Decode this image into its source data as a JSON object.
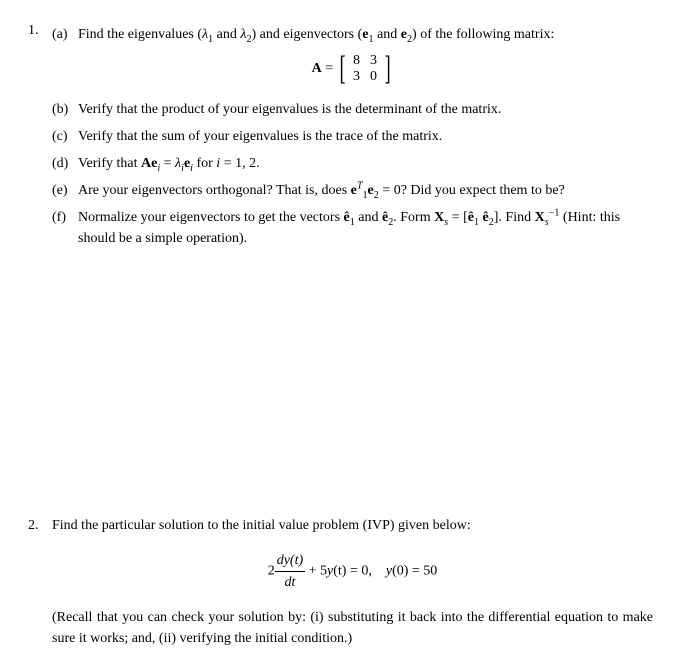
{
  "q1": {
    "number": "1.",
    "a": {
      "label": "(a)",
      "text_before": "Find the eigenvalues (",
      "lam1": "λ",
      "lam1_sub": "1",
      "text_mid1": " and ",
      "lam2": "λ",
      "lam2_sub": "2",
      "text_mid2": ") and eigenvectors (",
      "e1_pre": "e",
      "e1_sub": "1",
      "text_mid3": " and ",
      "e2_pre": "e",
      "e2_sub": "2",
      "text_after": ") of the following matrix:"
    },
    "matrix": {
      "lhs": "A",
      "eq": " = ",
      "r1c1": "8",
      "r1c2": "3",
      "r2c1": "3",
      "r2c2": "0"
    },
    "b": {
      "label": "(b)",
      "text": "Verify that the product of your eigenvalues is the determinant of the matrix."
    },
    "c": {
      "label": "(c)",
      "text": "Verify that the sum of your eigenvalues is the trace of the matrix."
    },
    "d": {
      "label": "(d)",
      "t1": "Verify that ",
      "A": "A",
      "e": "e",
      "i1": "i",
      "eq": " = ",
      "lam": "λ",
      "i2": "i",
      "e2": "e",
      "i3": "i",
      "t2": " for ",
      "ivar": "i",
      "t3": " = 1, 2."
    },
    "e": {
      "label": "(e)",
      "t1": "Are your eigenvectors orthogonal? That is, does ",
      "e1": "e",
      "sup1": "T",
      "sub1": "1",
      "e2": "e",
      "sub2": "2",
      "t2": " = 0? Did you expect them to be?"
    },
    "f": {
      "label": "(f)",
      "t1": "Normalize your eigenvectors to get the vectors ",
      "eh1": "ê",
      "s1": "1",
      "t2": " and ",
      "eh2": "ê",
      "s2": "2",
      "t3": ". Form ",
      "X": "X",
      "xs": "s",
      "t4": " = [",
      "eh1b": "ê",
      "s1b": "1",
      "sp": "  ",
      "eh2b": "ê",
      "s2b": "2",
      "t5": "]. Find ",
      "Xb": "X",
      "xsb": "s",
      "inv": "−1",
      "t6": " (Hint: this should be a simple operation)."
    }
  },
  "q2": {
    "number": "2.",
    "intro": "Find the particular solution to the initial value problem (IVP) given below:",
    "eq": {
      "coef": "2",
      "num": "dy(t)",
      "den": "dt",
      "mid": " + 5",
      "y": "y",
      "arg": "(t) = 0, ",
      "y0": "y",
      "cond": "(0) = 50"
    },
    "note": "(Recall that you can check your solution by: (i) substituting it back into the differential equation to make sure it works; and, (ii) verifying the initial condition.)"
  }
}
